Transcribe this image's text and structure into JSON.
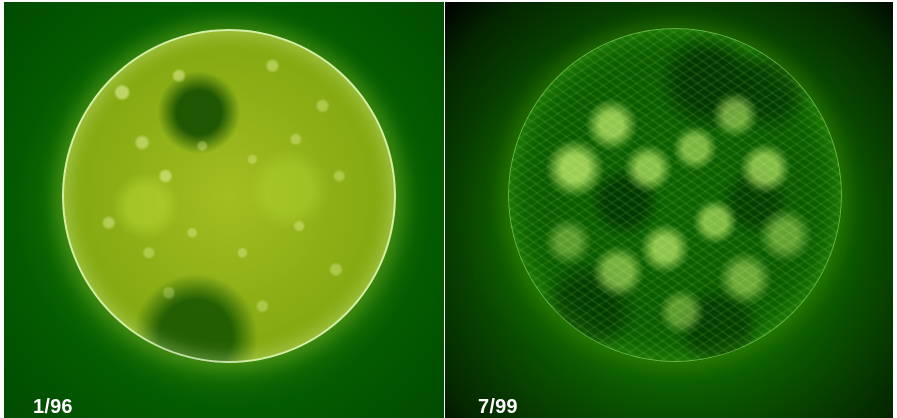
{
  "panels": [
    {
      "label": "1/96"
    },
    {
      "label": "7/99"
    }
  ]
}
